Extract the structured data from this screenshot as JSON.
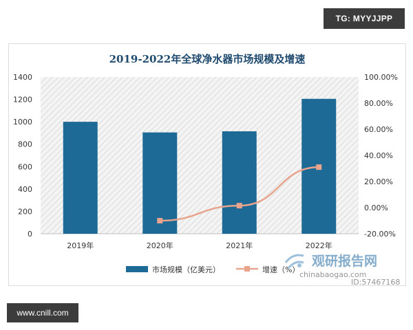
{
  "tag_text": "TG: MYYJJPP",
  "footer_text": "www.cnill.com",
  "watermark": {
    "brand": "观研报告网",
    "site": "chinabaogao.com",
    "id": "ID:57467168"
  },
  "colors": {
    "bar": "#1d6a96",
    "line": "#e8a48c",
    "title": "#1f4a6e",
    "background_hatch": "#e6e6e6"
  },
  "chart_data": {
    "type": "bar",
    "title": "2019-2022年全球净水器市场规模及增速",
    "categories": [
      "2019年",
      "2020年",
      "2021年",
      "2022年"
    ],
    "series": [
      {
        "name": "市场规模（亿美元）",
        "type": "bar",
        "axis": "left",
        "values": [
          1000,
          905,
          915,
          1205
        ]
      },
      {
        "name": "增速（%）",
        "type": "line",
        "axis": "right",
        "values": [
          null,
          -10.0,
          1.5,
          31.0
        ]
      }
    ],
    "y_left": {
      "min": 0,
      "max": 1400,
      "ticks": [
        "0",
        "200",
        "400",
        "600",
        "800",
        "1000",
        "1200",
        "1400"
      ]
    },
    "y_right": {
      "min": -20,
      "max": 100,
      "ticks": [
        "-20.00%",
        "0.00%",
        "20.00%",
        "40.00%",
        "60.00%",
        "80.00%",
        "100.00%"
      ]
    },
    "grid": false,
    "legend_position": "bottom"
  }
}
